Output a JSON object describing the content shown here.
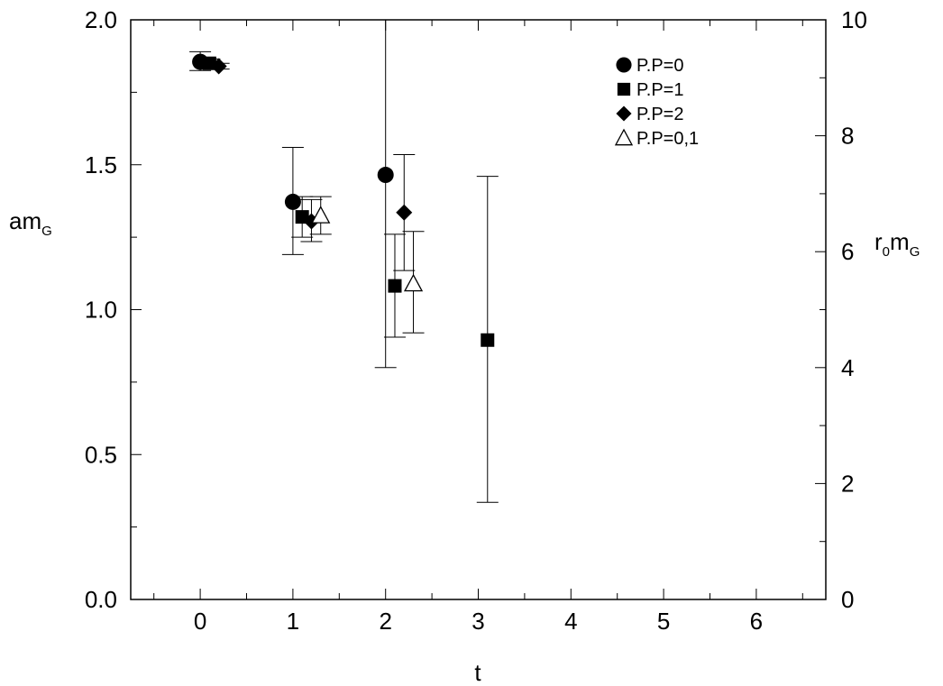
{
  "chart_data": {
    "type": "scatter",
    "xlabel": "t",
    "ylabel_left": {
      "main": "am",
      "sub": "G"
    },
    "ylabel_right": {
      "pre": "r",
      "sub1": "0",
      "mid": "m",
      "sub2": "G"
    },
    "xlim": [
      -0.75,
      6.75
    ],
    "ylim": [
      0.0,
      2.0
    ],
    "y2lim": [
      0,
      10
    ],
    "xticks": [
      0,
      1,
      2,
      3,
      4,
      5,
      6
    ],
    "xtick_labels": [
      "0",
      "1",
      "2",
      "3",
      "4",
      "5",
      "6"
    ],
    "yticks": [
      0.0,
      0.5,
      1.0,
      1.5,
      2.0
    ],
    "ytick_labels": [
      "0.0",
      "0.5",
      "1.0",
      "1.5",
      "2.0"
    ],
    "y2ticks": [
      0,
      2,
      4,
      6,
      8,
      10
    ],
    "y2tick_labels": [
      "0",
      "2",
      "4",
      "6",
      "8",
      "10"
    ],
    "legend_position": "top-right",
    "grid": false,
    "series": [
      {
        "name": "P.P=0",
        "marker": "circle",
        "points": [
          {
            "x": 0.0,
            "y": 1.855,
            "ylo": 1.825,
            "yhi": 1.89
          },
          {
            "x": 1.0,
            "y": 1.372,
            "ylo": 1.19,
            "yhi": 1.56
          },
          {
            "x": 2.0,
            "y": 1.465,
            "ylo": 0.8,
            "yhi": 2.0
          }
        ]
      },
      {
        "name": "P.P=1",
        "marker": "square",
        "points": [
          {
            "x": 0.1,
            "y": 1.85,
            "ylo": 1.83,
            "yhi": 1.865
          },
          {
            "x": 1.1,
            "y": 1.32,
            "ylo": 1.25,
            "yhi": 1.39
          },
          {
            "x": 2.1,
            "y": 1.082,
            "ylo": 0.905,
            "yhi": 1.26
          },
          {
            "x": 3.1,
            "y": 0.895,
            "ylo": 0.335,
            "yhi": 1.46
          }
        ]
      },
      {
        "name": "P.P=2",
        "marker": "diamond",
        "points": [
          {
            "x": 0.2,
            "y": 1.84,
            "ylo": 1.83,
            "yhi": 1.85
          },
          {
            "x": 1.2,
            "y": 1.305,
            "ylo": 1.235,
            "yhi": 1.38
          },
          {
            "x": 2.2,
            "y": 1.335,
            "ylo": 1.135,
            "yhi": 1.535
          }
        ]
      },
      {
        "name": "P.P=0,1",
        "marker": "triangle",
        "points": [
          {
            "x": 1.3,
            "y": 1.325,
            "ylo": 1.26,
            "yhi": 1.39
          },
          {
            "x": 2.3,
            "y": 1.09,
            "ylo": 0.92,
            "yhi": 1.27
          }
        ]
      }
    ]
  }
}
